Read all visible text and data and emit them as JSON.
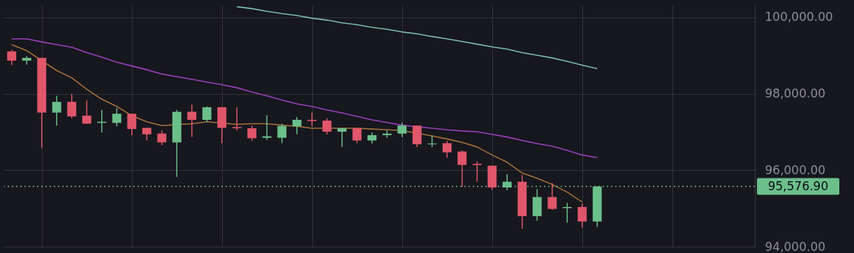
{
  "chart_data": {
    "type": "candlestick",
    "categories": [
      null,
      null,
      null,
      null,
      null,
      null,
      null,
      null,
      null,
      null,
      null,
      null,
      null,
      null,
      null,
      null,
      null,
      null,
      null,
      null,
      null,
      null,
      null,
      null,
      null,
      null,
      null,
      null,
      null,
      null,
      null,
      null,
      null,
      null,
      null,
      null,
      null,
      null,
      null,
      null,
      null,
      null,
      null,
      null,
      null,
      null,
      null,
      null,
      null,
      null
    ],
    "ohlc": [
      [
        99110,
        99150,
        98750,
        98870
      ],
      [
        98870,
        98990,
        98770,
        98940
      ],
      [
        98940,
        98940,
        96590,
        97510
      ],
      [
        97510,
        97950,
        97170,
        97790
      ],
      [
        97790,
        98000,
        97360,
        97410
      ],
      [
        97430,
        97830,
        97220,
        97220
      ],
      [
        97240,
        97580,
        96990,
        97270
      ],
      [
        97240,
        97630,
        97150,
        97480
      ],
      [
        97480,
        97480,
        96920,
        97080
      ],
      [
        97110,
        97110,
        96780,
        96940
      ],
      [
        96960,
        97040,
        96660,
        96730
      ],
      [
        96730,
        97580,
        95830,
        97530
      ],
      [
        97530,
        97720,
        96870,
        97320
      ],
      [
        97320,
        97670,
        97270,
        97650
      ],
      [
        97650,
        97650,
        96710,
        97110
      ],
      [
        97130,
        97650,
        97040,
        97100
      ],
      [
        97100,
        97170,
        96770,
        96840
      ],
      [
        96850,
        97440,
        96800,
        96890
      ],
      [
        96850,
        97220,
        96710,
        97160
      ],
      [
        97150,
        97390,
        96940,
        97320
      ],
      [
        97320,
        97510,
        97150,
        97290
      ],
      [
        97300,
        97360,
        96940,
        97010
      ],
      [
        97010,
        97110,
        96610,
        97100
      ],
      [
        97100,
        97110,
        96710,
        96780
      ],
      [
        96780,
        96990,
        96700,
        96920
      ],
      [
        96920,
        97040,
        96850,
        96960
      ],
      [
        96960,
        97250,
        96870,
        97170
      ],
      [
        97170,
        97170,
        96610,
        96680
      ],
      [
        96680,
        96900,
        96610,
        96700
      ],
      [
        96710,
        96770,
        96330,
        96470
      ],
      [
        96490,
        96520,
        95570,
        96140
      ],
      [
        96170,
        96230,
        95700,
        96140
      ],
      [
        96120,
        96120,
        95480,
        95550
      ],
      [
        95550,
        95900,
        95480,
        95700
      ],
      [
        95700,
        95880,
        94470,
        94800
      ],
      [
        94800,
        95510,
        94680,
        95300
      ],
      [
        95300,
        95670,
        94960,
        94990
      ],
      [
        95010,
        95150,
        94630,
        95040
      ],
      [
        95040,
        95130,
        94500,
        94660
      ],
      [
        94660,
        95580,
        94520,
        95576.9
      ],
      null,
      null,
      null,
      null,
      null,
      null,
      null,
      null,
      null,
      null
    ],
    "colors": [
      "#e0566a",
      "#6bbf8b",
      "#e0566a",
      "#6bbf8b",
      "#e0566a",
      "#e0566a",
      "#6bbf8b",
      "#6bbf8b",
      "#e0566a",
      "#e0566a",
      "#e0566a",
      "#6bbf8b",
      "#e0566a",
      "#6bbf8b",
      "#e0566a",
      "#e0566a",
      "#e0566a",
      "#6bbf8b",
      "#6bbf8b",
      "#6bbf8b",
      "#e0566a",
      "#e0566a",
      "#6bbf8b",
      "#e0566a",
      "#6bbf8b",
      "#6bbf8b",
      "#6bbf8b",
      "#e0566a",
      "#6bbf8b",
      "#e0566a",
      "#e0566a",
      "#e0566a",
      "#e0566a",
      "#6bbf8b",
      "#e0566a",
      "#6bbf8b",
      "#e0566a",
      "#6bbf8b",
      "#e0566a",
      "#6bbf8b",
      null,
      null,
      null,
      null,
      null,
      null,
      null,
      null,
      null,
      null
    ],
    "series": [
      {
        "type": "line",
        "color": "#a8733a",
        "values": [
          99290,
          99130,
          null,
          98610,
          98420,
          98120,
          97860,
          97670,
          97430,
          97270,
          97170,
          null,
          97220,
          97270,
          null,
          97200,
          97220,
          97220,
          97180,
          97150,
          97100,
          97100,
          97100,
          97100,
          97080,
          97060,
          97040,
          null,
          96900,
          96820,
          96730,
          96610,
          96400,
          96210,
          95930,
          95790,
          95630,
          95430,
          95170,
          null,
          null,
          null,
          null,
          null,
          null,
          null,
          null,
          null,
          null,
          null
        ]
      },
      {
        "type": "line",
        "color": "#9d40bf",
        "values": [
          99440,
          99440,
          99360,
          99290,
          99220,
          99080,
          98960,
          98830,
          98730,
          98630,
          98520,
          98450,
          98380,
          98310,
          98240,
          98160,
          98050,
          97950,
          97840,
          97740,
          97670,
          97580,
          97500,
          97410,
          97320,
          97250,
          97180,
          null,
          97100,
          97060,
          97030,
          97010,
          96940,
          96870,
          96780,
          96700,
          96630,
          96520,
          96400,
          96330,
          null,
          null,
          null,
          null,
          null,
          null,
          null,
          null,
          null,
          null
        ]
      },
      {
        "type": "line",
        "color": "#7fbfb2",
        "values": [
          null,
          null,
          null,
          null,
          null,
          null,
          null,
          null,
          null,
          null,
          null,
          null,
          null,
          null,
          null,
          100280,
          100230,
          100160,
          100100,
          100050,
          99980,
          99930,
          99860,
          99810,
          99740,
          99690,
          99620,
          99570,
          99500,
          99440,
          99370,
          99300,
          99230,
          99170,
          99080,
          99010,
          98940,
          98850,
          98750,
          98660,
          null,
          null,
          null,
          null,
          null,
          null,
          null,
          null,
          null,
          null
        ]
      }
    ],
    "ylim": [
      94000,
      100310
    ],
    "yticks": [
      {
        "value": 94000,
        "label": "94,000.00"
      },
      {
        "value": 96000,
        "label": "96,000.00"
      },
      {
        "value": 98000,
        "label": "98,000.00"
      },
      {
        "value": 100000,
        "label": "100,000.00"
      }
    ],
    "grid": true,
    "tick_labels": "y",
    "ref_lines": [
      {
        "axis": "y",
        "value": 95576.9,
        "label": "95,576.90",
        "color": "#6bbf8b",
        "line_style": "dotted"
      }
    ]
  }
}
